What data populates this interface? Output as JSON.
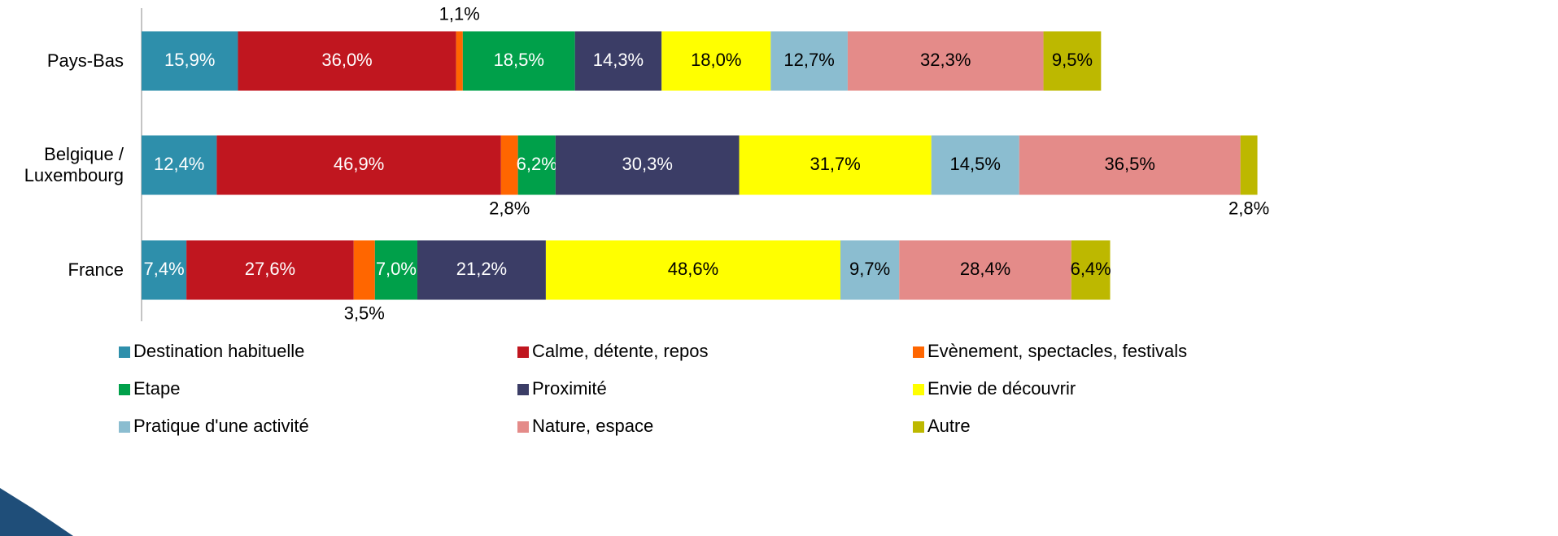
{
  "chart_data": {
    "type": "stacked-barh",
    "categories": [
      "Pays-Bas",
      "Belgique / Luxembourg",
      "France"
    ],
    "series": [
      {
        "name": "Destination habituelle",
        "color": "#2e8fab",
        "values": [
          15.9,
          12.4,
          7.4
        ],
        "value_labels": [
          "15,9%",
          "12,4%",
          "7,4%"
        ]
      },
      {
        "name": "Calme, détente, repos",
        "color": "#c0161f",
        "values": [
          36.0,
          46.9,
          27.6
        ],
        "value_labels": [
          "36,0%",
          "46,9%",
          "27,6%"
        ]
      },
      {
        "name": "Evènement, spectacles, festivals",
        "color": "#ff6600",
        "values": [
          1.1,
          2.8,
          3.5
        ],
        "value_labels": [
          "1,1%",
          "2,8%",
          "3,5%"
        ]
      },
      {
        "name": "Etape",
        "color": "#00a04a",
        "values": [
          18.5,
          6.2,
          7.0
        ],
        "value_labels": [
          "18,5%",
          "6,2%",
          "7,0%"
        ]
      },
      {
        "name": "Proximité",
        "color": "#3b3d66",
        "values": [
          14.3,
          30.3,
          21.2
        ],
        "value_labels": [
          "14,3%",
          "30,3%",
          "21,2%"
        ]
      },
      {
        "name": "Envie de découvrir",
        "color": "#ffff00",
        "values": [
          18.0,
          31.7,
          48.6
        ],
        "value_labels": [
          "18,0%",
          "31,7%",
          "48,6%"
        ]
      },
      {
        "name": "Pratique d'une activité",
        "color": "#8bbdd0",
        "values": [
          12.7,
          14.5,
          9.7
        ],
        "value_labels": [
          "12,7%",
          "14,5%",
          "9,7%"
        ]
      },
      {
        "name": "Nature, espace",
        "color": "#e48b89",
        "values": [
          32.3,
          36.5,
          28.4
        ],
        "value_labels": [
          "32,3%",
          "36,5%",
          "28,4%"
        ]
      },
      {
        "name": "Autre",
        "color": "#bdb800",
        "values": [
          9.5,
          2.8,
          6.4
        ],
        "value_labels": [
          "9,5%",
          "2,8%",
          "6,4%"
        ]
      }
    ],
    "legend": "bottom"
  }
}
